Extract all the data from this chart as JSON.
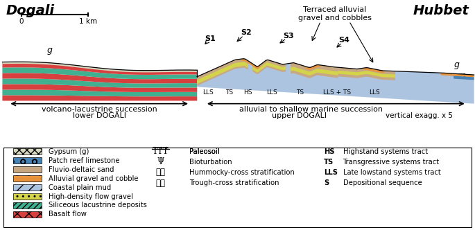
{
  "title_left": "Dogali",
  "title_right": "Hubbet",
  "terraced_label": "Terraced alluvial\ngravel and cobbles",
  "left_label1": "volcano-lacustrine succession",
  "left_label2": "lower DOGALI",
  "right_label1": "alluvial to shallow marine succession",
  "right_label2": "upper DOGALI",
  "vert_exagg": "vertical exagg. x 5",
  "c_basalt": "#d84040",
  "c_siliceous": "#40b090",
  "c_gypsum": "#d8d8c0",
  "c_fluvio": "#c8a882",
  "c_alluvial": "#e8923c",
  "c_coastal": "#adc4e0",
  "c_high_density": "#d4d44a",
  "c_patch_reef": "#4682b4",
  "systems_tracts": [
    [
      "LLS",
      4.38,
      3.65
    ],
    [
      "TS",
      4.82,
      3.65
    ],
    [
      "HS",
      5.22,
      3.65
    ],
    [
      "LLS",
      5.72,
      3.65
    ],
    [
      "TS",
      6.32,
      3.65
    ],
    [
      "LLS + TS",
      7.1,
      3.65
    ],
    [
      "LLS",
      7.88,
      3.65
    ]
  ],
  "legend_col1": [
    {
      "label": "Gypsum (g)",
      "color": "#d8d8c0",
      "hatch": "xxx"
    },
    {
      "label": "Patch reef limestone",
      "color": "#4682b4",
      "hatch": "o"
    },
    {
      "label": "Fluvio-deltaic sand",
      "color": "#c8a882",
      "hatch": ""
    },
    {
      "label": "Alluvial gravel and cobble",
      "color": "#e8923c",
      "hatch": "o"
    },
    {
      "label": "Coastal plain mud",
      "color": "#adc4e0",
      "hatch": "//"
    },
    {
      "label": "High-density flow gravel",
      "color": "#d4d44a",
      "hatch": ".."
    },
    {
      "label": "Siliceous lacustrine deposits",
      "color": "#40b090",
      "hatch": "////"
    },
    {
      "label": "Basalt flow",
      "color": "#d84040",
      "hatch": "xx"
    }
  ],
  "legend_col2_labels": [
    "Paleosoil",
    "Bioturbation",
    "Hummocky-cross stratification",
    "Trough-cross stratification"
  ],
  "legend_col3": [
    {
      "abbr": "HS",
      "label": "Highstand systems tract"
    },
    {
      "abbr": "TS",
      "label": "Transgressive systems tract"
    },
    {
      "abbr": "LLS",
      "label": "Late lowstand systems tract"
    },
    {
      "abbr": "S",
      "label": "Depositional sequence"
    }
  ]
}
